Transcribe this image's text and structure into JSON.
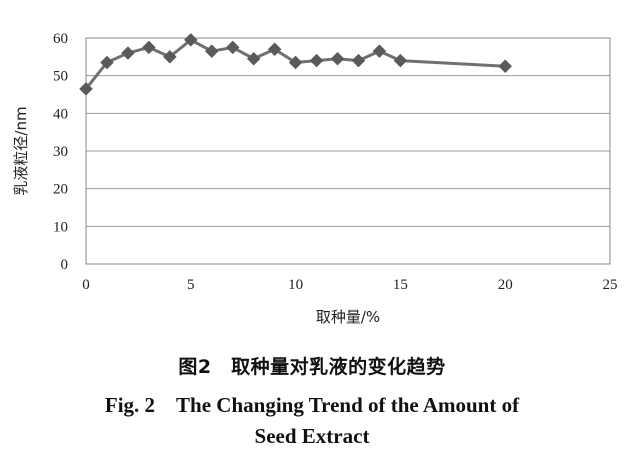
{
  "chart_data": {
    "type": "line",
    "xlabel": "取种量/%",
    "ylabel": "乳液粒径/nm",
    "xlim": [
      0,
      25
    ],
    "ylim": [
      0,
      60
    ],
    "x_ticks": [
      "0",
      "5",
      "10",
      "15",
      "20",
      "25"
    ],
    "y_ticks": [
      "0",
      "10",
      "20",
      "30",
      "40",
      "50",
      "60"
    ],
    "grid": "horizontal",
    "legend": "none",
    "marker": "diamond",
    "line_color": "#707070",
    "marker_color": "#5a5a5a",
    "series": [
      {
        "x": [
          0,
          1,
          2,
          3,
          4,
          5,
          6,
          7,
          8,
          9,
          10,
          11,
          12,
          13,
          14,
          15,
          20
        ],
        "values": [
          46.5,
          53.5,
          56,
          57.5,
          55,
          59.5,
          56.5,
          57.5,
          54.5,
          57,
          53.5,
          54,
          54.5,
          54,
          56.5,
          54,
          52.5
        ]
      }
    ]
  },
  "caption": {
    "cn": "图2　取种量对乳液的变化趋势",
    "en_line1": "Fig. 2　The Changing Trend of the Amount of",
    "en_line2": "Seed Extract"
  }
}
